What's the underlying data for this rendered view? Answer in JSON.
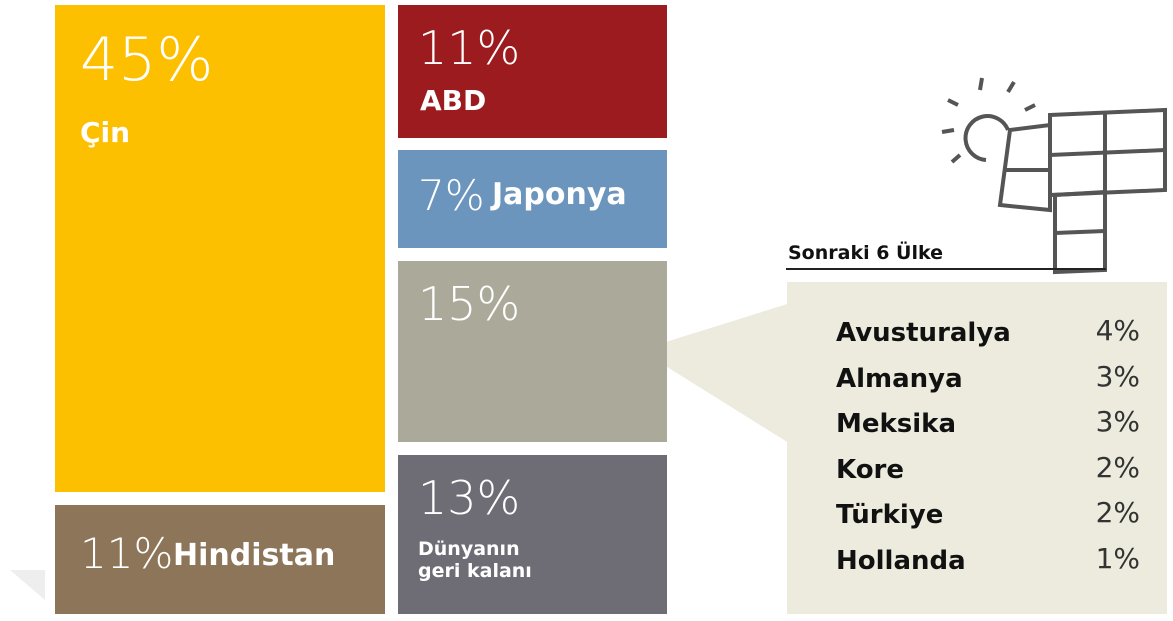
{
  "chart_data": {
    "type": "treemap",
    "categories": [
      "Çin",
      "Hindistan",
      "ABD",
      "Japonya",
      null,
      "Dünyanın geri kalanı"
    ],
    "values": [
      45,
      11,
      11,
      7,
      15,
      13
    ],
    "value_labels": [
      "45%",
      "11%",
      "11%",
      "7%",
      "15%",
      "13%"
    ],
    "colors": [
      "#fcc000",
      "#8c7558",
      "#9b1b1e",
      "#6b95bd",
      "#abaa9a",
      "#6e6d76"
    ],
    "breakdown": {
      "title": "Sonraki 6 Ülke",
      "categories": [
        "Avusturalya",
        "Almanya",
        "Meksika",
        "Kore",
        "Türkiye",
        "Hollanda"
      ],
      "values": [
        4,
        3,
        3,
        2,
        2,
        1
      ],
      "value_labels": [
        "4%",
        "3%",
        "3%",
        "2%",
        "2%",
        "1%"
      ]
    }
  }
}
